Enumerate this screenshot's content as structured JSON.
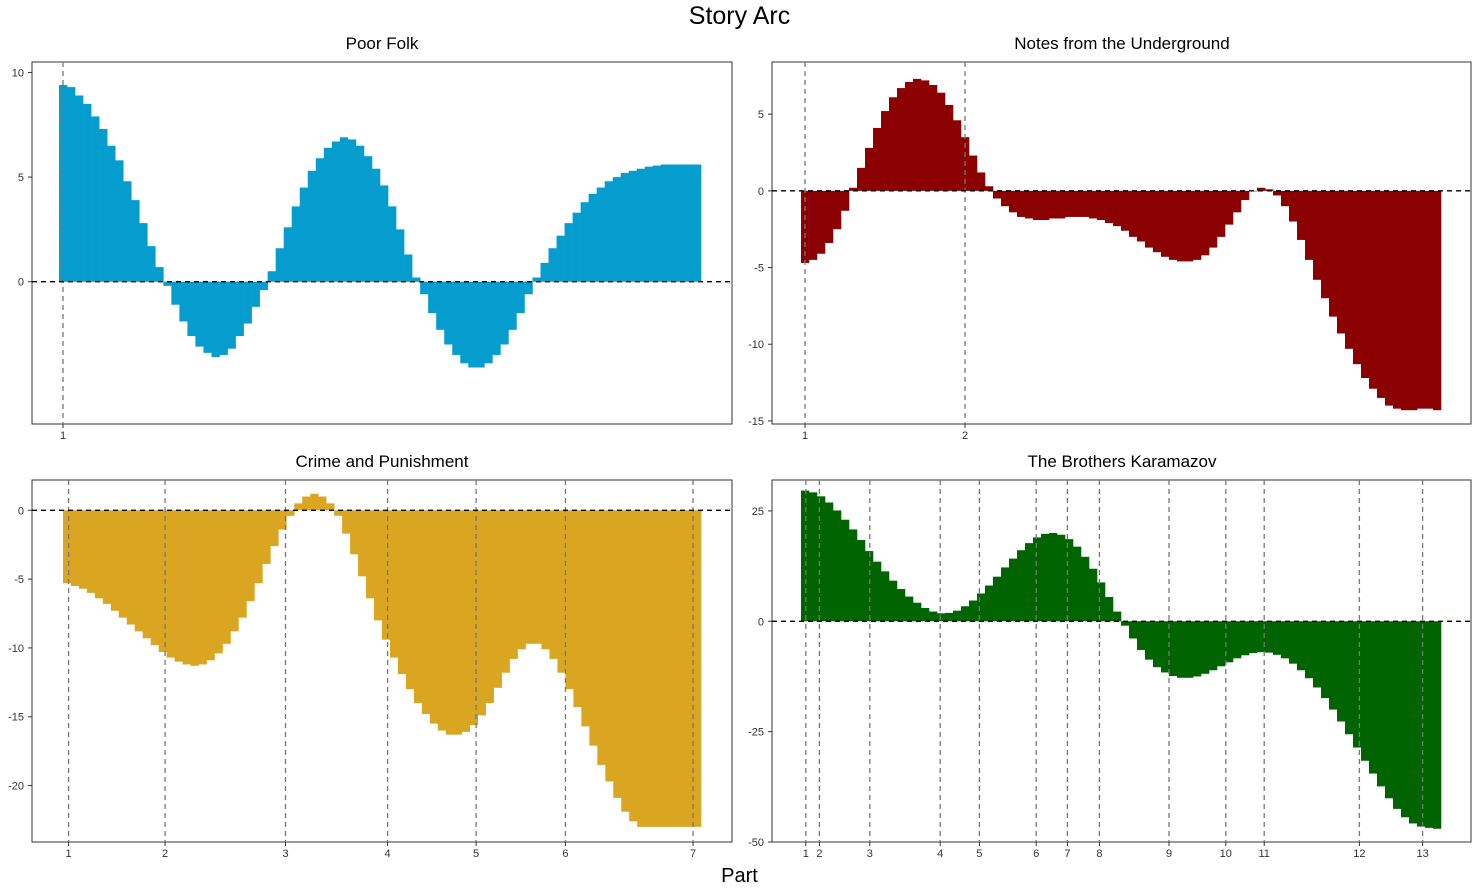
{
  "title": "Story Arc",
  "x_axis_title": "Part",
  "chart_data": [
    {
      "type": "bar",
      "title": "Poor Folk",
      "color": "#049DCE",
      "bars": 80,
      "ylim": [
        -6.8,
        10.5
      ],
      "y_ticks": [
        0,
        5,
        10
      ],
      "part_ticks": [
        {
          "label": "1",
          "pos": 0
        }
      ],
      "values": [
        9.4,
        9.3,
        8.9,
        8.5,
        7.9,
        7.3,
        6.5,
        5.8,
        4.8,
        3.9,
        2.8,
        1.7,
        0.7,
        -0.2,
        -1.1,
        -1.9,
        -2.6,
        -3.1,
        -3.4,
        -3.6,
        -3.5,
        -3.2,
        -2.6,
        -2.0,
        -1.2,
        -0.4,
        0.5,
        1.6,
        2.6,
        3.6,
        4.5,
        5.3,
        5.9,
        6.4,
        6.7,
        6.9,
        6.8,
        6.5,
        6.0,
        5.4,
        4.6,
        3.6,
        2.5,
        1.3,
        0.2,
        -0.6,
        -1.5,
        -2.3,
        -3.0,
        -3.5,
        -3.9,
        -4.1,
        -4.1,
        -3.9,
        -3.5,
        -3.0,
        -2.3,
        -1.5,
        -0.6,
        0.2,
        0.9,
        1.6,
        2.2,
        2.8,
        3.3,
        3.8,
        4.2,
        4.5,
        4.8,
        5.0,
        5.2,
        5.3,
        5.4,
        5.5,
        5.55,
        5.6,
        5.6,
        5.6,
        5.6,
        5.6
      ]
    },
    {
      "type": "bar",
      "title": "Notes from the Underground",
      "color": "#8B0000",
      "bars": 80,
      "ylim": [
        -15.2,
        8.4
      ],
      "y_ticks": [
        -15,
        -10,
        -5,
        0,
        5
      ],
      "part_ticks": [
        {
          "label": "1",
          "pos": 0
        },
        {
          "label": "2",
          "pos": 20
        }
      ],
      "values": [
        -4.7,
        -4.5,
        -4.1,
        -3.4,
        -2.5,
        -1.3,
        0.2,
        1.5,
        2.8,
        4.1,
        5.2,
        6.1,
        6.7,
        7.1,
        7.3,
        7.2,
        6.9,
        6.4,
        5.6,
        4.6,
        3.5,
        2.3,
        1.2,
        0.3,
        -0.5,
        -1.0,
        -1.4,
        -1.7,
        -1.8,
        -1.9,
        -1.9,
        -1.8,
        -1.8,
        -1.7,
        -1.7,
        -1.7,
        -1.8,
        -1.9,
        -2.1,
        -2.3,
        -2.6,
        -3.0,
        -3.3,
        -3.7,
        -4.0,
        -4.3,
        -4.5,
        -4.6,
        -4.6,
        -4.5,
        -4.2,
        -3.7,
        -3.0,
        -2.2,
        -1.4,
        -0.6,
        0.0,
        0.2,
        0.1,
        -0.3,
        -1.0,
        -2.0,
        -3.2,
        -4.5,
        -5.8,
        -7.0,
        -8.2,
        -9.3,
        -10.3,
        -11.3,
        -12.2,
        -12.9,
        -13.5,
        -14.0,
        -14.2,
        -14.3,
        -14.3,
        -14.2,
        -14.2,
        -14.3
      ]
    },
    {
      "type": "bar",
      "title": "Crime and Punishment",
      "color": "#DAA520",
      "bars": 80,
      "ylim": [
        -24.1,
        2.2
      ],
      "y_ticks": [
        -20,
        -15,
        -10,
        -5,
        0
      ],
      "part_ticks": [
        {
          "label": "1",
          "pos": 0.2
        },
        {
          "label": "2",
          "pos": 12.3
        },
        {
          "label": "3",
          "pos": 27.4
        },
        {
          "label": "4",
          "pos": 40.2
        },
        {
          "label": "5",
          "pos": 51.3
        },
        {
          "label": "6",
          "pos": 62.5
        },
        {
          "label": "7",
          "pos": 78.5
        }
      ],
      "values": [
        -5.3,
        -5.5,
        -5.7,
        -6.0,
        -6.4,
        -6.8,
        -7.3,
        -7.8,
        -8.3,
        -8.8,
        -9.3,
        -9.8,
        -10.3,
        -10.7,
        -11.0,
        -11.2,
        -11.3,
        -11.2,
        -10.9,
        -10.4,
        -9.7,
        -8.8,
        -7.8,
        -6.6,
        -5.3,
        -3.9,
        -2.6,
        -1.4,
        -0.4,
        0.5,
        1.0,
        1.2,
        1.0,
        0.5,
        -0.4,
        -1.7,
        -3.2,
        -4.8,
        -6.4,
        -8.0,
        -9.4,
        -10.7,
        -11.9,
        -13.0,
        -14.0,
        -14.8,
        -15.5,
        -16.0,
        -16.3,
        -16.3,
        -16.1,
        -15.6,
        -14.9,
        -14.0,
        -12.9,
        -11.8,
        -10.8,
        -10.1,
        -9.7,
        -9.7,
        -10.1,
        -10.8,
        -11.8,
        -13.0,
        -14.3,
        -15.7,
        -17.1,
        -18.5,
        -19.7,
        -20.9,
        -21.9,
        -22.6,
        -23.0,
        -23.0,
        -23.0,
        -23.0,
        -23.0,
        -23.0,
        -23.0,
        -23.0
      ]
    },
    {
      "type": "bar",
      "title": "The Brothers Karamazov",
      "color": "#006400",
      "bars": 80,
      "ylim": [
        -50,
        32
      ],
      "y_ticks": [
        -50,
        -25,
        0,
        25
      ],
      "part_ticks": [
        {
          "label": "1",
          "pos": 0.1
        },
        {
          "label": "2",
          "pos": 1.8
        },
        {
          "label": "3",
          "pos": 8.1
        },
        {
          "label": "4",
          "pos": 16.9
        },
        {
          "label": "5",
          "pos": 21.8
        },
        {
          "label": "6",
          "pos": 28.9
        },
        {
          "label": "7",
          "pos": 32.8
        },
        {
          "label": "8",
          "pos": 36.8
        },
        {
          "label": "9",
          "pos": 45.5
        },
        {
          "label": "10",
          "pos": 52.6
        },
        {
          "label": "11",
          "pos": 57.4
        },
        {
          "label": "12",
          "pos": 69.3
        },
        {
          "label": "13",
          "pos": 77.2
        }
      ],
      "values": [
        29.6,
        29.2,
        28.3,
        26.9,
        25.1,
        23.0,
        20.8,
        18.4,
        15.9,
        13.5,
        11.3,
        9.2,
        7.3,
        5.6,
        4.2,
        3.0,
        2.2,
        1.8,
        1.9,
        2.4,
        3.4,
        4.7,
        6.3,
        8.1,
        10.1,
        12.2,
        14.2,
        16.1,
        17.7,
        19.0,
        19.8,
        20.0,
        19.6,
        18.6,
        16.9,
        14.6,
        11.9,
        8.8,
        5.5,
        2.2,
        -1.0,
        -3.9,
        -6.5,
        -8.7,
        -10.4,
        -11.6,
        -12.4,
        -12.8,
        -12.8,
        -12.5,
        -11.9,
        -11.1,
        -10.2,
        -9.3,
        -8.4,
        -7.7,
        -7.2,
        -7.0,
        -7.1,
        -7.6,
        -8.4,
        -9.6,
        -11.1,
        -12.9,
        -15.0,
        -17.4,
        -20.0,
        -22.7,
        -25.6,
        -28.6,
        -31.6,
        -34.5,
        -37.4,
        -40.1,
        -42.5,
        -44.4,
        -45.8,
        -46.5,
        -46.8,
        -47.0
      ]
    }
  ]
}
